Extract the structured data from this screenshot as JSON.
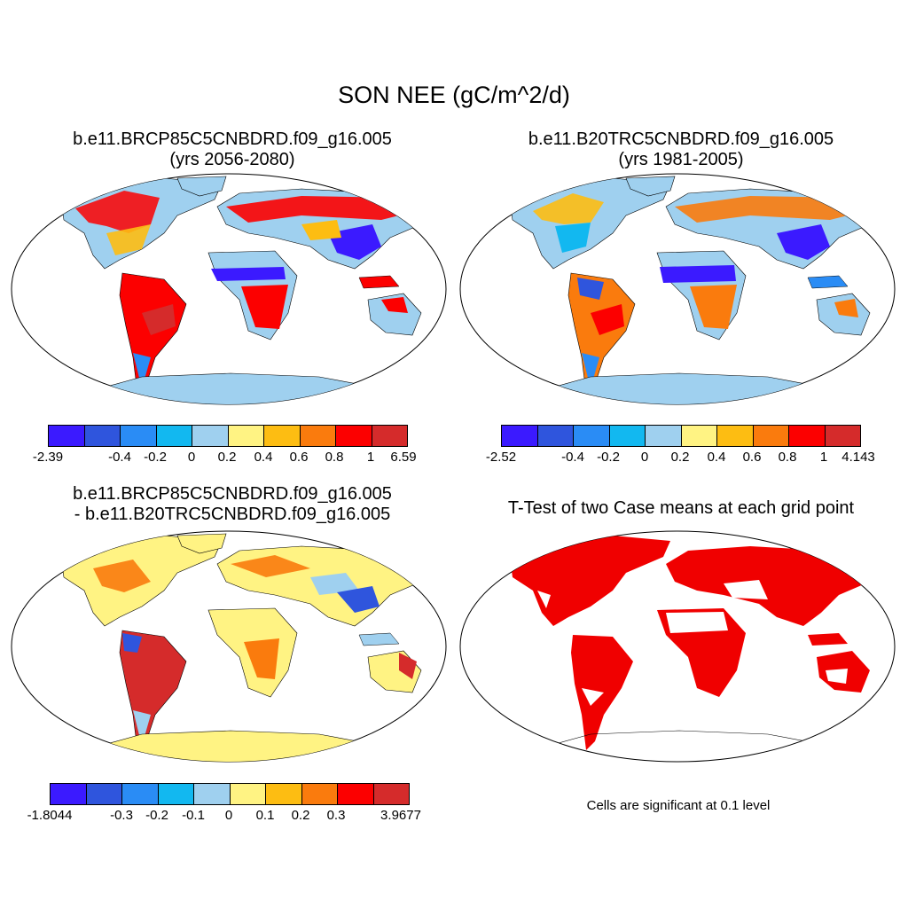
{
  "figure": {
    "title": "SON NEE (gC/m^2/d)"
  },
  "panels": [
    {
      "title_line1": "b.e11.BRCP85C5CNBDRD.f09_g16.005",
      "title_line2": "(yrs 2056-2080)"
    },
    {
      "title_line1": "b.e11.B20TRC5CNBDRD.f09_g16.005",
      "title_line2": "(yrs 1981-2005)"
    },
    {
      "title_line1": "b.e11.BRCP85C5CNBDRD.f09_g16.005",
      "title_line2": "- b.e11.B20TRC5CNBDRD.f09_g16.005"
    },
    {
      "title_line1": "T-Test of two Case means at each grid point",
      "title_line2": ""
    }
  ],
  "colorbars": [
    {
      "labels": [
        "-2.39",
        "-0.4",
        "-0.2",
        "0",
        "0.2",
        "0.4",
        "0.6",
        "0.8",
        "1",
        "6.59"
      ]
    },
    {
      "labels": [
        "-2.52",
        "-0.4",
        "-0.2",
        "0",
        "0.2",
        "0.4",
        "0.6",
        "0.8",
        "1",
        "4.143"
      ]
    },
    {
      "labels": [
        "-1.8044",
        "-0.3",
        "-0.2",
        "-0.1",
        "0",
        "0.1",
        "0.2",
        "0.3",
        "3.9677"
      ]
    }
  ],
  "colors": [
    "#3b1aff",
    "#2f55dd",
    "#2a8cf5",
    "#12b8f0",
    "#9fd0ef",
    "#fff383",
    "#fdbd12",
    "#fa7b0d",
    "#fc0000",
    "#d52b2b"
  ],
  "significance_color": "#f00000",
  "note": "Cells are significant at 0.1 level"
}
